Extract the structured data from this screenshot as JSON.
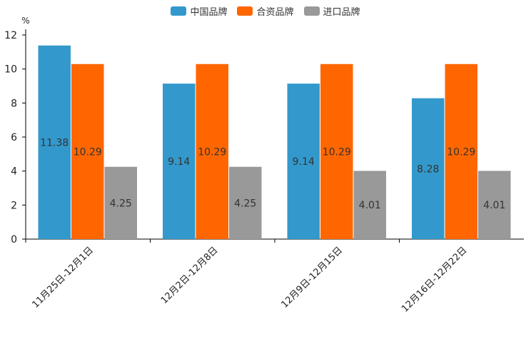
{
  "chart_data": {
    "type": "bar",
    "title": "",
    "unit_label": "%",
    "xlabel": "",
    "ylabel": "%",
    "ylim": [
      0,
      12
    ],
    "yticks": [
      0,
      2,
      4,
      6,
      8,
      10,
      12
    ],
    "legend_position": "top-center",
    "grid": false,
    "categories": [
      "11月25日-12月1日",
      "12月2日-12月8日",
      "12月9日-12月15日",
      "12月16日-12月22日"
    ],
    "series": [
      {
        "name": "中国品牌",
        "color": "#3399cc",
        "values": [
          11.38,
          9.14,
          9.14,
          8.28
        ]
      },
      {
        "name": "合资品牌",
        "color": "#ff6600",
        "values": [
          10.29,
          10.29,
          10.29,
          10.29
        ]
      },
      {
        "name": "进口品牌",
        "color": "#999999",
        "values": [
          4.25,
          4.25,
          4.01,
          4.01
        ]
      }
    ]
  }
}
